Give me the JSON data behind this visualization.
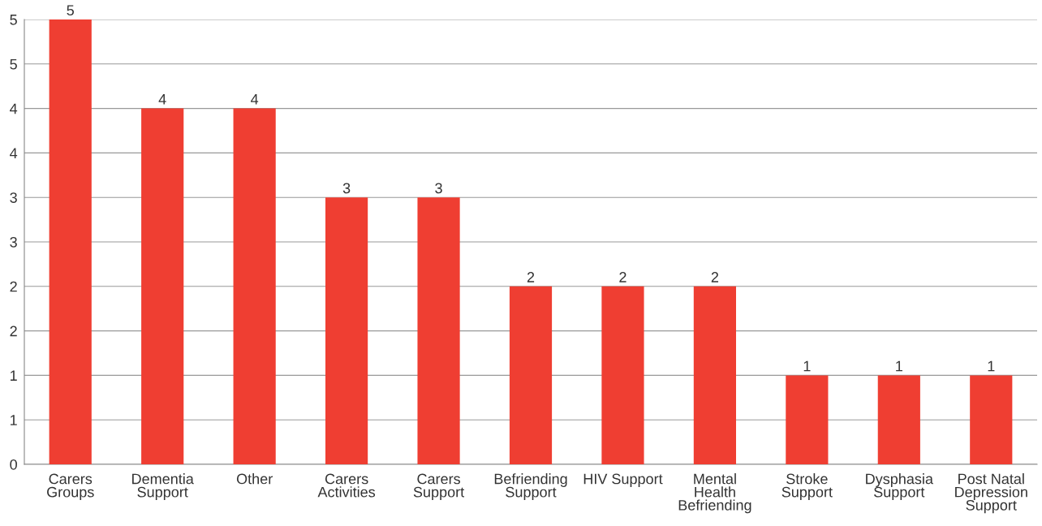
{
  "chart_data": {
    "type": "bar",
    "categories": [
      "Carers\nGroups",
      "Dementia\nSupport",
      "Other",
      "Carers\nActivities",
      "Carers\nSupport",
      "Befriending\nSupport",
      "HIV Support",
      "Mental\nHealth\nBefriending",
      "Stroke\nSupport",
      "Dysphasia\nSupport",
      "Post Natal\nDepression\nSupport"
    ],
    "values": [
      5,
      4,
      4,
      3,
      3,
      2,
      2,
      2,
      1,
      1,
      1
    ],
    "color": "#ef3e32",
    "ylim": [
      0,
      5
    ],
    "yticks": [
      0,
      {
        "value": 0.5,
        "label": "1"
      },
      1,
      {
        "value": 1.5,
        "label": "2"
      },
      2,
      {
        "value": 2.5,
        "label": "3"
      },
      3,
      {
        "value": 3.5,
        "label": "4"
      },
      4,
      {
        "value": 4.5,
        "label": "5"
      },
      5
    ],
    "grid": "y",
    "data_labels": true
  }
}
